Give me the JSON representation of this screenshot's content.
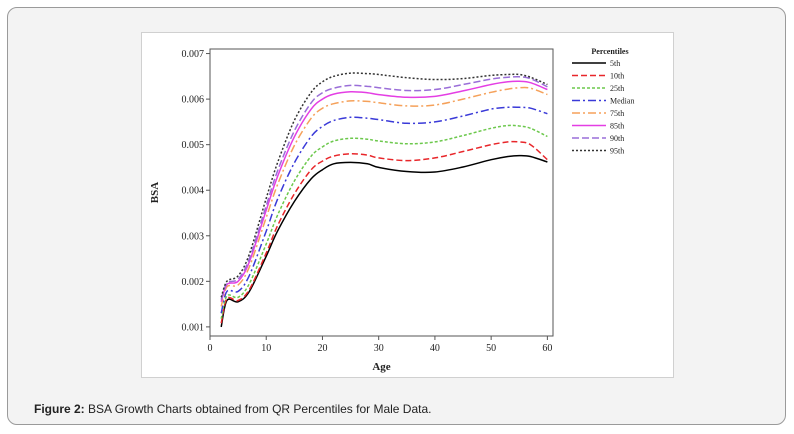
{
  "caption": {
    "label": "Figure 2:",
    "text": " BSA Growth Charts obtained from QR Percentiles for Male Data."
  },
  "chart_data": {
    "type": "line",
    "xlabel": "Age",
    "ylabel": "BSA",
    "xlim": [
      0,
      61
    ],
    "ylim": [
      0.0008,
      0.0071
    ],
    "xticks": [
      0,
      10,
      20,
      30,
      40,
      50,
      60
    ],
    "yticks": [
      0.001,
      0.002,
      0.003,
      0.004,
      0.005,
      0.006,
      0.007
    ],
    "ytick_labels": [
      "0.001",
      "0.002",
      "0.003",
      "0.004",
      "0.005",
      "0.006",
      "0.007"
    ],
    "legend_title": "Percentiles",
    "legend_position": "right",
    "grid": false,
    "x": [
      2,
      3,
      5,
      7,
      10,
      12,
      15,
      18,
      20,
      22,
      25,
      28,
      30,
      35,
      40,
      45,
      50,
      53,
      55,
      57,
      60
    ],
    "series": [
      {
        "name": "5th",
        "color": "#000000",
        "dash": "",
        "values": [
          0.001,
          0.00158,
          0.00155,
          0.00178,
          0.00255,
          0.0031,
          0.00375,
          0.00425,
          0.00445,
          0.00458,
          0.00461,
          0.00458,
          0.0045,
          0.00441,
          0.0044,
          0.00451,
          0.00467,
          0.00474,
          0.00476,
          0.00474,
          0.00462
        ]
      },
      {
        "name": "10th",
        "color": "#e8262a",
        "dash": "6,3",
        "values": [
          0.00108,
          0.00162,
          0.00158,
          0.00182,
          0.00262,
          0.00322,
          0.00392,
          0.00445,
          0.00464,
          0.00475,
          0.0048,
          0.00477,
          0.00471,
          0.00465,
          0.00471,
          0.00485,
          0.005,
          0.00506,
          0.00506,
          0.005,
          0.00467
        ]
      },
      {
        "name": "25th",
        "color": "#6cc84c",
        "dash": "3,2",
        "values": [
          0.00118,
          0.00168,
          0.00165,
          0.00195,
          0.00282,
          0.00345,
          0.0042,
          0.00475,
          0.00495,
          0.00508,
          0.00514,
          0.00512,
          0.00508,
          0.00502,
          0.00506,
          0.0052,
          0.00536,
          0.00542,
          0.00541,
          0.00536,
          0.00518
        ]
      },
      {
        "name": "Median",
        "color": "#3a3ad8",
        "dash": "8,3,2,3",
        "values": [
          0.0013,
          0.00178,
          0.00178,
          0.00213,
          0.0031,
          0.0038,
          0.0046,
          0.00518,
          0.0054,
          0.00553,
          0.0056,
          0.00558,
          0.00555,
          0.00547,
          0.0055,
          0.00563,
          0.00578,
          0.00582,
          0.00582,
          0.0058,
          0.00568
        ]
      },
      {
        "name": "75th",
        "color": "#f5a15a",
        "dash": "8,3,2,3",
        "values": [
          0.00145,
          0.00188,
          0.00192,
          0.00232,
          0.0034,
          0.00412,
          0.00498,
          0.00558,
          0.0058,
          0.0059,
          0.00596,
          0.00595,
          0.00592,
          0.00585,
          0.00587,
          0.006,
          0.00615,
          0.00622,
          0.00625,
          0.00624,
          0.0061
        ]
      },
      {
        "name": "85th",
        "color": "#e43ee4",
        "dash": "",
        "values": [
          0.00155,
          0.00193,
          0.002,
          0.00243,
          0.00356,
          0.0043,
          0.00517,
          0.00578,
          0.006,
          0.00611,
          0.00616,
          0.00614,
          0.0061,
          0.00604,
          0.00606,
          0.00618,
          0.00632,
          0.00638,
          0.00639,
          0.00636,
          0.00621
        ]
      },
      {
        "name": "90th",
        "color": "#9a6ed8",
        "dash": "7,3",
        "values": [
          0.0016,
          0.00196,
          0.00205,
          0.0025,
          0.00366,
          0.00442,
          0.0053,
          0.00592,
          0.00614,
          0.00624,
          0.0063,
          0.00628,
          0.00625,
          0.00619,
          0.00621,
          0.00632,
          0.00644,
          0.00648,
          0.00649,
          0.00645,
          0.00627
        ]
      },
      {
        "name": "95th",
        "color": "#333333",
        "dash": "2,2",
        "values": [
          0.00165,
          0.002,
          0.00212,
          0.0026,
          0.00382,
          0.0046,
          0.00553,
          0.00615,
          0.00638,
          0.0065,
          0.00657,
          0.00656,
          0.00654,
          0.00647,
          0.00643,
          0.00645,
          0.00652,
          0.00654,
          0.00654,
          0.00648,
          0.00632
        ]
      }
    ]
  }
}
